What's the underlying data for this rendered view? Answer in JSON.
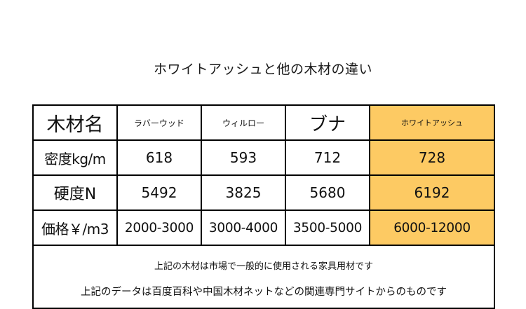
{
  "title": "ホワイトアッシュと他の木材の違い",
  "table": {
    "header": {
      "label": "木材名",
      "woods": [
        "ラバーウッド",
        "ウィルロー",
        "ブナ",
        "ホワイトアッシュ"
      ]
    },
    "rows": [
      {
        "label": "密度kg/m",
        "values": [
          "618",
          "593",
          "712",
          "728"
        ]
      },
      {
        "label": "硬度N",
        "values": [
          "5492",
          "3825",
          "5680",
          "6192"
        ]
      },
      {
        "label": "価格￥/m3",
        "values": [
          "2000-3000",
          "3000-4000",
          "3500-5000",
          "6000-12000"
        ]
      }
    ],
    "highlight_color": "#fdca63"
  },
  "notes": [
    "上記の木材は市場で一般的に使用される家具用材です",
    "上記のデータは百度百科や中国木材ネットなどの関連専門サイトからのものです"
  ]
}
